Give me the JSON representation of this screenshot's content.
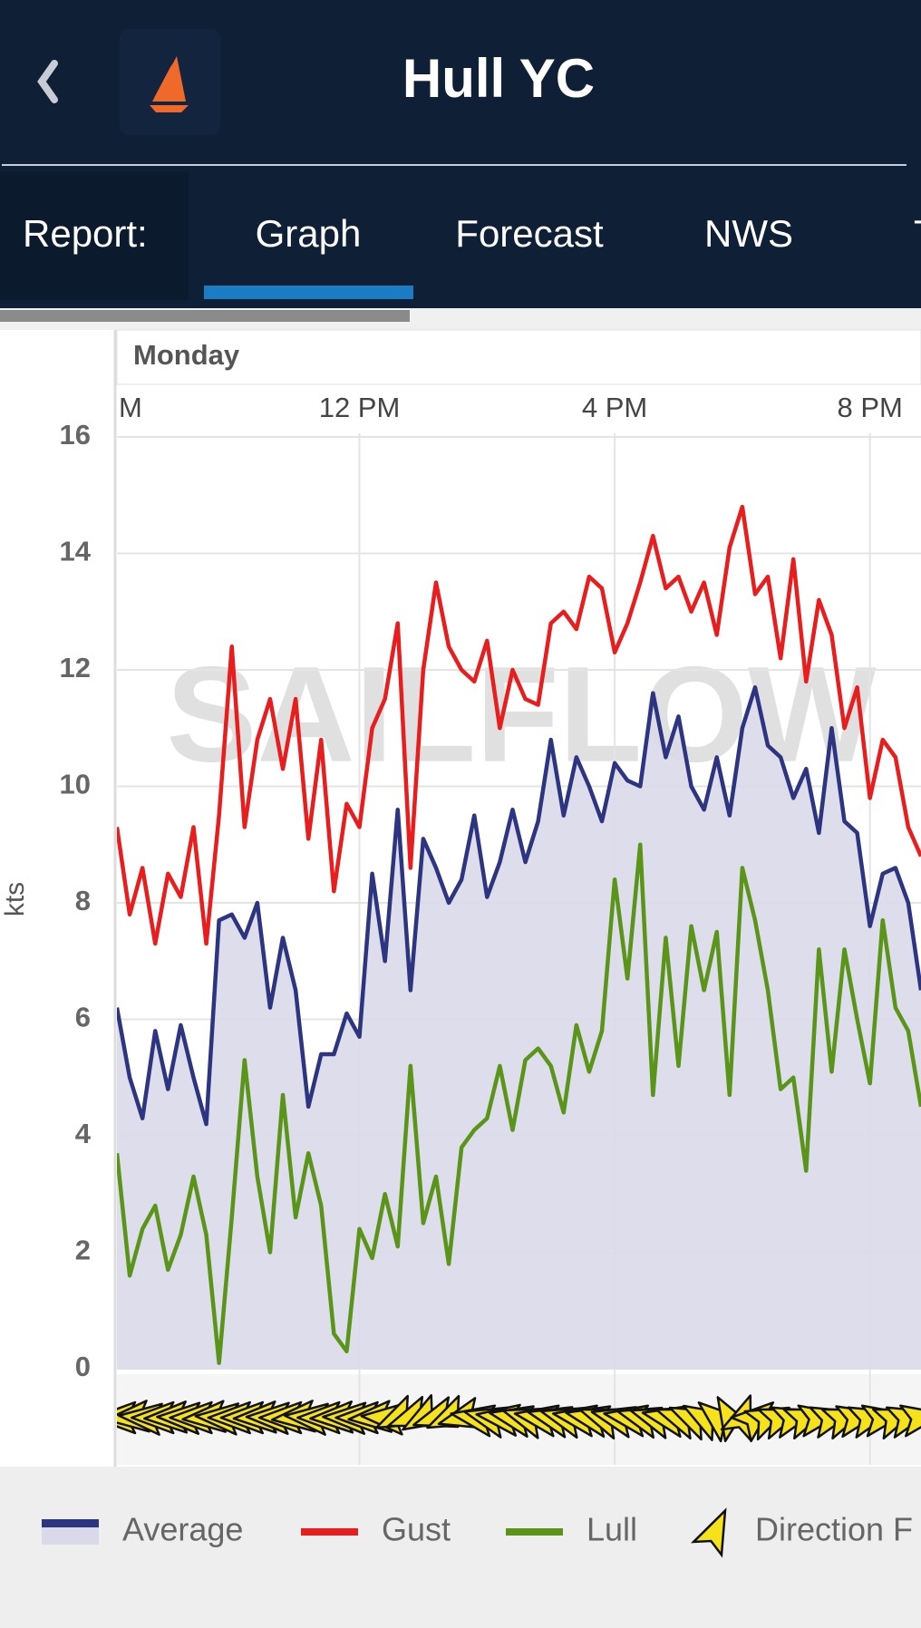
{
  "header": {
    "title": "Hull YC"
  },
  "tabs": {
    "label": "Report:",
    "items": [
      "Graph",
      "Forecast",
      "NWS",
      "T"
    ]
  },
  "chart_data": {
    "type": "line",
    "day": "Monday",
    "ylabel": "kts",
    "watermark": "SAILFLOW",
    "xlim": [
      8.2,
      20.8
    ],
    "xticks": [
      {
        "value": 8,
        "label": "M"
      },
      {
        "value": 12,
        "label": "12 PM"
      },
      {
        "value": 16,
        "label": "4 PM"
      },
      {
        "value": 20,
        "label": "8 PM"
      }
    ],
    "ylim": [
      0,
      16
    ],
    "yticks": [
      0,
      2,
      4,
      6,
      8,
      10,
      12,
      14,
      16
    ],
    "grid": true,
    "x": [
      8.2,
      8.4,
      8.6,
      8.8,
      9,
      9.2,
      9.4,
      9.6,
      9.8,
      10,
      10.2,
      10.4,
      10.6,
      10.8,
      11,
      11.2,
      11.4,
      11.6,
      11.8,
      12,
      12.2,
      12.4,
      12.6,
      12.8,
      13,
      13.2,
      13.4,
      13.6,
      13.8,
      14,
      14.2,
      14.4,
      14.6,
      14.8,
      15,
      15.2,
      15.4,
      15.6,
      15.8,
      16,
      16.2,
      16.4,
      16.6,
      16.8,
      17,
      17.2,
      17.4,
      17.6,
      17.8,
      18,
      18.2,
      18.4,
      18.6,
      18.8,
      19,
      19.2,
      19.4,
      19.6,
      19.8,
      20,
      20.2,
      20.4,
      20.6,
      20.8
    ],
    "series": [
      {
        "name": "Average",
        "color": "#2e3580",
        "fill": "#d9d9e9",
        "values": [
          6.2,
          5.0,
          4.3,
          5.8,
          4.8,
          5.9,
          5.0,
          4.2,
          7.7,
          7.8,
          7.4,
          8.0,
          6.2,
          7.4,
          6.5,
          4.5,
          5.4,
          5.4,
          6.1,
          5.7,
          8.5,
          7.0,
          9.6,
          6.5,
          9.1,
          8.6,
          8.0,
          8.4,
          9.5,
          8.1,
          8.7,
          9.6,
          8.7,
          9.4,
          10.8,
          9.5,
          10.5,
          10.0,
          9.4,
          10.4,
          10.1,
          10.0,
          11.6,
          10.5,
          11.2,
          10.0,
          9.6,
          10.5,
          9.5,
          11.0,
          11.7,
          10.7,
          10.5,
          9.8,
          10.3,
          9.2,
          11.0,
          9.4,
          9.2,
          7.6,
          8.5,
          8.6,
          8.0,
          6.5
        ]
      },
      {
        "name": "Gust",
        "color": "#e81e1e",
        "values": [
          9.3,
          7.8,
          8.6,
          7.3,
          8.5,
          8.1,
          9.3,
          7.3,
          9.5,
          12.4,
          9.3,
          10.8,
          11.5,
          10.3,
          11.5,
          9.1,
          10.8,
          8.2,
          9.7,
          9.3,
          11.0,
          11.5,
          12.8,
          8.6,
          12.0,
          13.5,
          12.4,
          12.0,
          11.8,
          12.5,
          11.0,
          12.0,
          11.5,
          11.4,
          12.8,
          13.0,
          12.7,
          13.6,
          13.4,
          12.3,
          12.8,
          13.5,
          14.3,
          13.4,
          13.6,
          13.0,
          13.5,
          12.6,
          14.1,
          14.8,
          13.3,
          13.6,
          12.2,
          13.9,
          11.8,
          13.2,
          12.6,
          11.0,
          11.7,
          9.8,
          10.8,
          10.5,
          9.3,
          8.8
        ]
      },
      {
        "name": "Lull",
        "color": "#5a9418",
        "values": [
          3.7,
          1.6,
          2.4,
          2.8,
          1.7,
          2.3,
          3.3,
          2.3,
          0.1,
          2.6,
          5.3,
          3.3,
          2.0,
          4.7,
          2.6,
          3.7,
          2.8,
          0.6,
          0.3,
          2.4,
          1.9,
          3.0,
          2.1,
          5.2,
          2.5,
          3.3,
          1.8,
          3.8,
          4.1,
          4.3,
          5.2,
          4.1,
          5.3,
          5.5,
          5.2,
          4.4,
          5.9,
          5.1,
          5.8,
          8.4,
          6.7,
          9.0,
          4.7,
          7.4,
          5.2,
          7.6,
          6.5,
          7.5,
          4.7,
          8.6,
          7.7,
          6.5,
          4.8,
          5.0,
          3.4,
          7.2,
          5.1,
          7.2,
          6.0,
          4.9,
          7.7,
          6.2,
          5.8,
          4.5
        ]
      }
    ],
    "direction": {
      "name": "Direction F",
      "color": "#f5e21b",
      "values": [
        90,
        85,
        95,
        90,
        88,
        92,
        90,
        86,
        94,
        90,
        90,
        88,
        92,
        90,
        85,
        95,
        90,
        88,
        92,
        90,
        86,
        94,
        65,
        70,
        60,
        72,
        65,
        75,
        100,
        105,
        98,
        102,
        108,
        100,
        104,
        106,
        100,
        102,
        110,
        104,
        100,
        106,
        108,
        102,
        110,
        115,
        120,
        130,
        150,
        200,
        230,
        245,
        250,
        255,
        250,
        260,
        255,
        250,
        258,
        255,
        260,
        250,
        255,
        260
      ]
    }
  }
}
